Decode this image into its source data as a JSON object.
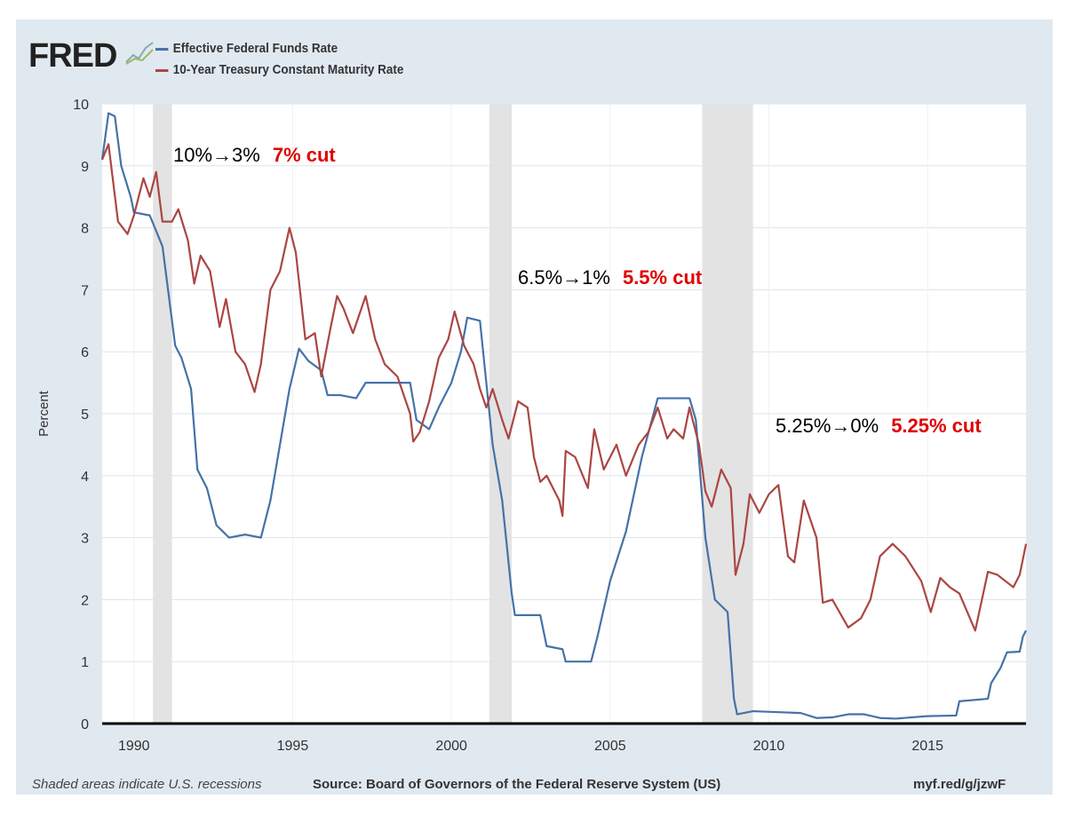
{
  "logo": "FRED",
  "chart_data": {
    "type": "line",
    "title": "",
    "ylabel": "Percent",
    "xlabel": "",
    "ylim": [
      0,
      10
    ],
    "xlim": [
      1989.0,
      2018.1
    ],
    "yticks": [
      "0",
      "1",
      "2",
      "3",
      "4",
      "5",
      "6",
      "7",
      "8",
      "9",
      "10"
    ],
    "xticks": [
      "1990",
      "1995",
      "2000",
      "2005",
      "2010",
      "2015"
    ],
    "legend_position": "top-left",
    "recessions": [
      [
        1990.6,
        1991.2
      ],
      [
        2001.2,
        2001.9
      ],
      [
        2007.9,
        2009.5
      ]
    ],
    "series": [
      {
        "name": "Effective Federal Funds Rate",
        "color": "#4572a7",
        "points": [
          [
            1989.0,
            9.1
          ],
          [
            1989.2,
            9.85
          ],
          [
            1989.4,
            9.8
          ],
          [
            1989.6,
            9.0
          ],
          [
            1989.9,
            8.5
          ],
          [
            1990.0,
            8.25
          ],
          [
            1990.5,
            8.2
          ],
          [
            1990.9,
            7.7
          ],
          [
            1991.1,
            6.9
          ],
          [
            1991.3,
            6.1
          ],
          [
            1991.5,
            5.9
          ],
          [
            1991.8,
            5.4
          ],
          [
            1992.0,
            4.1
          ],
          [
            1992.3,
            3.8
          ],
          [
            1992.6,
            3.2
          ],
          [
            1993.0,
            3.0
          ],
          [
            1993.5,
            3.05
          ],
          [
            1994.0,
            3.0
          ],
          [
            1994.3,
            3.6
          ],
          [
            1994.6,
            4.5
          ],
          [
            1994.9,
            5.4
          ],
          [
            1995.2,
            6.05
          ],
          [
            1995.5,
            5.85
          ],
          [
            1995.9,
            5.7
          ],
          [
            1996.1,
            5.3
          ],
          [
            1996.5,
            5.3
          ],
          [
            1997.0,
            5.25
          ],
          [
            1997.3,
            5.5
          ],
          [
            1998.0,
            5.5
          ],
          [
            1998.7,
            5.5
          ],
          [
            1998.9,
            4.9
          ],
          [
            1999.3,
            4.75
          ],
          [
            1999.6,
            5.1
          ],
          [
            2000.0,
            5.5
          ],
          [
            2000.3,
            6.0
          ],
          [
            2000.5,
            6.55
          ],
          [
            2000.9,
            6.5
          ],
          [
            2001.0,
            6.0
          ],
          [
            2001.3,
            4.5
          ],
          [
            2001.6,
            3.6
          ],
          [
            2001.9,
            2.1
          ],
          [
            2002.0,
            1.75
          ],
          [
            2002.8,
            1.75
          ],
          [
            2003.0,
            1.25
          ],
          [
            2003.5,
            1.2
          ],
          [
            2003.6,
            1.0
          ],
          [
            2004.4,
            1.0
          ],
          [
            2004.6,
            1.4
          ],
          [
            2005.0,
            2.3
          ],
          [
            2005.5,
            3.1
          ],
          [
            2006.0,
            4.3
          ],
          [
            2006.5,
            5.25
          ],
          [
            2007.5,
            5.25
          ],
          [
            2007.7,
            4.9
          ],
          [
            2008.0,
            3.0
          ],
          [
            2008.3,
            2.0
          ],
          [
            2008.7,
            1.8
          ],
          [
            2008.9,
            0.4
          ],
          [
            2009.0,
            0.15
          ],
          [
            2009.5,
            0.2
          ],
          [
            2010.5,
            0.18
          ],
          [
            2011.0,
            0.17
          ],
          [
            2011.5,
            0.09
          ],
          [
            2012.0,
            0.1
          ],
          [
            2012.5,
            0.15
          ],
          [
            2013.0,
            0.15
          ],
          [
            2013.5,
            0.09
          ],
          [
            2014.0,
            0.08
          ],
          [
            2015.0,
            0.12
          ],
          [
            2015.9,
            0.13
          ],
          [
            2016.0,
            0.36
          ],
          [
            2016.9,
            0.4
          ],
          [
            2017.0,
            0.65
          ],
          [
            2017.3,
            0.9
          ],
          [
            2017.5,
            1.15
          ],
          [
            2017.9,
            1.16
          ],
          [
            2018.0,
            1.4
          ],
          [
            2018.1,
            1.5
          ]
        ]
      },
      {
        "name": "10-Year Treasury Constant Maturity Rate",
        "color": "#aa4643",
        "points": [
          [
            1989.0,
            9.1
          ],
          [
            1989.2,
            9.35
          ],
          [
            1989.5,
            8.1
          ],
          [
            1989.8,
            7.9
          ],
          [
            1990.0,
            8.2
          ],
          [
            1990.3,
            8.8
          ],
          [
            1990.5,
            8.5
          ],
          [
            1990.7,
            8.9
          ],
          [
            1990.9,
            8.1
          ],
          [
            1991.2,
            8.1
          ],
          [
            1991.4,
            8.3
          ],
          [
            1991.7,
            7.8
          ],
          [
            1991.9,
            7.1
          ],
          [
            1992.1,
            7.55
          ],
          [
            1992.4,
            7.3
          ],
          [
            1992.7,
            6.4
          ],
          [
            1992.9,
            6.85
          ],
          [
            1993.2,
            6.0
          ],
          [
            1993.5,
            5.8
          ],
          [
            1993.8,
            5.35
          ],
          [
            1994.0,
            5.8
          ],
          [
            1994.3,
            7.0
          ],
          [
            1994.6,
            7.3
          ],
          [
            1994.9,
            8.0
          ],
          [
            1995.1,
            7.6
          ],
          [
            1995.4,
            6.2
          ],
          [
            1995.7,
            6.3
          ],
          [
            1995.9,
            5.6
          ],
          [
            1996.2,
            6.4
          ],
          [
            1996.4,
            6.9
          ],
          [
            1996.6,
            6.7
          ],
          [
            1996.9,
            6.3
          ],
          [
            1997.3,
            6.9
          ],
          [
            1997.6,
            6.2
          ],
          [
            1997.9,
            5.8
          ],
          [
            1998.3,
            5.6
          ],
          [
            1998.7,
            5.0
          ],
          [
            1998.8,
            4.55
          ],
          [
            1999.0,
            4.7
          ],
          [
            1999.3,
            5.2
          ],
          [
            1999.6,
            5.9
          ],
          [
            1999.9,
            6.2
          ],
          [
            2000.1,
            6.65
          ],
          [
            2000.4,
            6.1
          ],
          [
            2000.7,
            5.8
          ],
          [
            2000.9,
            5.4
          ],
          [
            2001.1,
            5.1
          ],
          [
            2001.3,
            5.4
          ],
          [
            2001.6,
            4.9
          ],
          [
            2001.8,
            4.6
          ],
          [
            2002.1,
            5.2
          ],
          [
            2002.4,
            5.1
          ],
          [
            2002.6,
            4.3
          ],
          [
            2002.8,
            3.9
          ],
          [
            2003.0,
            4.0
          ],
          [
            2003.4,
            3.6
          ],
          [
            2003.5,
            3.35
          ],
          [
            2003.6,
            4.4
          ],
          [
            2003.9,
            4.3
          ],
          [
            2004.3,
            3.8
          ],
          [
            2004.5,
            4.75
          ],
          [
            2004.8,
            4.1
          ],
          [
            2005.2,
            4.5
          ],
          [
            2005.5,
            4.0
          ],
          [
            2005.9,
            4.5
          ],
          [
            2006.2,
            4.7
          ],
          [
            2006.5,
            5.1
          ],
          [
            2006.8,
            4.6
          ],
          [
            2007.0,
            4.75
          ],
          [
            2007.3,
            4.6
          ],
          [
            2007.5,
            5.1
          ],
          [
            2007.8,
            4.5
          ],
          [
            2008.0,
            3.75
          ],
          [
            2008.2,
            3.5
          ],
          [
            2008.5,
            4.1
          ],
          [
            2008.8,
            3.8
          ],
          [
            2008.95,
            2.4
          ],
          [
            2009.2,
            2.9
          ],
          [
            2009.4,
            3.7
          ],
          [
            2009.7,
            3.4
          ],
          [
            2010.0,
            3.7
          ],
          [
            2010.3,
            3.85
          ],
          [
            2010.6,
            2.7
          ],
          [
            2010.8,
            2.6
          ],
          [
            2011.1,
            3.6
          ],
          [
            2011.5,
            3.0
          ],
          [
            2011.7,
            1.95
          ],
          [
            2012.0,
            2.0
          ],
          [
            2012.5,
            1.55
          ],
          [
            2012.9,
            1.7
          ],
          [
            2013.2,
            2.0
          ],
          [
            2013.5,
            2.7
          ],
          [
            2013.9,
            2.9
          ],
          [
            2014.3,
            2.7
          ],
          [
            2014.8,
            2.3
          ],
          [
            2015.1,
            1.8
          ],
          [
            2015.4,
            2.35
          ],
          [
            2015.7,
            2.2
          ],
          [
            2016.0,
            2.1
          ],
          [
            2016.5,
            1.5
          ],
          [
            2016.9,
            2.45
          ],
          [
            2017.2,
            2.4
          ],
          [
            2017.7,
            2.2
          ],
          [
            2017.9,
            2.4
          ],
          [
            2018.1,
            2.9
          ]
        ]
      }
    ],
    "annotations": [
      {
        "text": "10%→3%",
        "highlight": "7% cut"
      },
      {
        "text": "6.5%→1%",
        "highlight": "5.5% cut"
      },
      {
        "text": "5.25%→0%",
        "highlight": "5.25% cut"
      }
    ]
  },
  "footer": {
    "note": "Shaded areas indicate U.S. recessions",
    "source": "Source: Board of Governors of the Federal Reserve System (US)",
    "link": "myf.red/g/jzwF"
  }
}
